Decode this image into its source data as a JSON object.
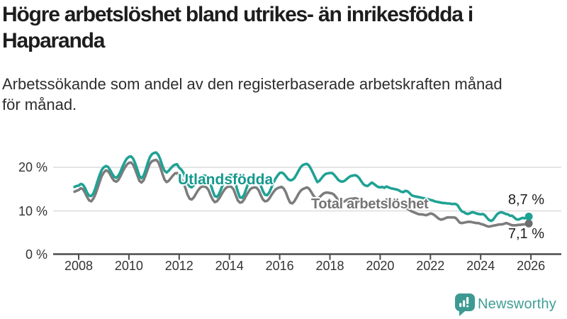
{
  "header": {
    "title_lines": [
      "Högre arbetslöshet bland utrikes- än inrikesfödda i",
      "Haparanda"
    ],
    "subtitle_lines": [
      "Arbetssökande som andel av den registerbaserade arbetskraften månad",
      "för månad."
    ]
  },
  "footer": {
    "brand": "Newsworthy"
  },
  "colors": {
    "teal_line": "#1fa294",
    "teal_label": "#14998c",
    "gray_line": "#7c7c7c",
    "gray_dot": "#6e6e6e",
    "gray_label": "#747474",
    "logo_teal": "#3d9a93",
    "grid": "#dcdcdc",
    "axis": "#4b4b4b",
    "tick_text": "#333333"
  },
  "chart_data": {
    "type": "line",
    "title": "Högre arbetslöshet bland utrikes- än inrikesfödda i Haparanda",
    "subtitle": "Arbetssökande som andel av den registerbaserade arbetskraften månad för månad.",
    "unit": "%",
    "frequency": "monthly",
    "x_start": "2007-11",
    "x_end": "2025-12",
    "x_ticks": [
      2008,
      2010,
      2012,
      2014,
      2016,
      2018,
      2020,
      2022,
      2024,
      2026
    ],
    "y_ticks": [
      {
        "value": 0,
        "label": "0 %"
      },
      {
        "value": 10,
        "label": "10 %"
      },
      {
        "value": 20,
        "label": "20 %"
      }
    ],
    "ylim": [
      0,
      25
    ],
    "grid": "horizontal",
    "legend_position": "inline-labels",
    "series": [
      {
        "name": "Utlandsfödda",
        "color": "#1fa294",
        "dot_color": "#1fa294",
        "end_label": "8,7 %",
        "end_value": 8.7,
        "values": [
          15.5,
          15.7,
          15.8,
          16.2,
          16.0,
          15.3,
          14.2,
          13.5,
          13.4,
          14.0,
          15.2,
          16.8,
          18.2,
          19.4,
          20.0,
          20.3,
          20.1,
          19.4,
          18.5,
          17.8,
          17.6,
          18.1,
          19.0,
          20.2,
          21.2,
          22.0,
          22.4,
          22.5,
          22.0,
          20.9,
          19.5,
          18.0,
          17.5,
          18.1,
          19.4,
          21.0,
          22.3,
          23.0,
          23.3,
          23.4,
          22.9,
          21.8,
          20.3,
          19.2,
          18.8,
          19.2,
          19.8,
          20.3,
          20.6,
          20.7,
          19.9,
          19.5,
          18.8,
          17.6,
          16.3,
          15.6,
          15.4,
          15.9,
          16.6,
          17.3,
          17.8,
          18.0,
          18.1,
          18.0,
          17.4,
          16.2,
          14.6,
          13.4,
          13.2,
          13.8,
          15.0,
          16.2,
          17.2,
          17.8,
          18.2,
          18.3,
          17.6,
          16.1,
          14.4,
          13.1,
          13.0,
          13.7,
          15.0,
          16.3,
          17.1,
          17.5,
          17.7,
          17.6,
          17.0,
          15.8,
          14.5,
          13.7,
          13.6,
          14.2,
          15.3,
          16.4,
          17.4,
          18.1,
          18.7,
          18.8,
          18.5,
          17.9,
          17.3,
          17.0,
          17.1,
          17.5,
          18.3,
          19.2,
          20.0,
          20.5,
          20.7,
          20.8,
          20.4,
          19.6,
          18.6,
          17.6,
          16.6,
          16.9,
          17.5,
          18.1,
          18.5,
          18.6,
          18.7,
          18.7,
          18.3,
          17.7,
          17.1,
          16.8,
          16.7,
          16.9,
          17.3,
          17.7,
          18.0,
          18.1,
          18.2,
          18.0,
          17.5,
          16.8,
          16.1,
          15.8,
          15.7,
          16.1,
          16.5,
          16.2,
          15.8,
          15.5,
          15.4,
          15.5,
          15.3,
          15.6,
          15.4,
          15.2,
          15.1,
          15.0,
          14.9,
          14.7,
          14.4,
          14.3,
          14.6,
          14.5,
          14.1,
          13.6,
          13.4,
          13.3,
          13.2,
          13.1,
          13.0,
          12.9,
          12.8,
          12.7,
          12.5,
          12.4,
          12.2,
          12.1,
          12.0,
          11.9,
          11.8,
          11.8,
          11.7,
          11.7,
          11.6,
          11.6,
          11.6,
          11.3,
          10.5,
          9.9,
          9.7,
          9.4,
          9.3,
          9.5,
          9.7,
          9.6,
          9.4,
          9.3,
          9.2,
          9.3,
          9.0,
          8.4,
          7.9,
          7.7,
          8.0,
          8.7,
          9.3,
          9.6,
          9.7,
          9.5,
          9.3,
          9.2,
          8.9,
          8.9,
          8.5,
          8.1,
          8.0,
          8.2,
          8.4,
          8.3,
          8.4,
          8.7
        ]
      },
      {
        "name": "Total arbetslöshet",
        "color": "#7c7c7c",
        "dot_color": "#6e6e6e",
        "end_label": "7,1 %",
        "end_value": 7.1,
        "values": [
          14.4,
          14.6,
          14.8,
          15.2,
          15.0,
          14.2,
          13.2,
          12.4,
          12.2,
          12.8,
          13.8,
          15.2,
          16.6,
          18.0,
          18.8,
          19.3,
          19.1,
          18.4,
          17.5,
          16.9,
          16.7,
          17.1,
          18.0,
          19.0,
          19.9,
          20.6,
          21.0,
          21.1,
          20.6,
          19.5,
          18.2,
          16.9,
          16.5,
          17.0,
          18.2,
          19.6,
          20.8,
          21.4,
          21.6,
          21.7,
          21.2,
          20.0,
          18.5,
          17.2,
          16.6,
          16.9,
          17.5,
          18.1,
          18.6,
          18.7,
          17.9,
          17.4,
          16.5,
          15.2,
          13.7,
          12.8,
          12.6,
          13.1,
          13.9,
          14.7,
          15.3,
          15.6,
          15.6,
          15.4,
          14.8,
          13.6,
          12.6,
          12.0,
          12.2,
          12.8,
          13.6,
          14.4,
          15.1,
          15.5,
          15.6,
          15.5,
          14.9,
          13.6,
          12.4,
          11.9,
          12.0,
          12.6,
          13.5,
          14.3,
          15.0,
          15.3,
          15.4,
          15.3,
          14.7,
          13.6,
          12.6,
          12.2,
          12.3,
          12.8,
          13.6,
          14.3,
          14.9,
          15.2,
          15.4,
          15.5,
          15.1,
          14.2,
          12.9,
          11.9,
          11.7,
          12.2,
          13.0,
          13.9,
          14.6,
          15.0,
          15.2,
          15.4,
          15.1,
          14.4,
          13.6,
          13.0,
          12.8,
          13.1,
          13.6,
          14.0,
          14.2,
          14.2,
          14.1,
          14.0,
          13.7,
          13.1,
          12.5,
          12.1,
          12.0,
          12.2,
          12.5,
          12.7,
          12.8,
          12.8,
          12.9,
          12.8,
          12.5,
          12.0,
          11.6,
          11.3,
          11.2,
          11.4,
          11.6,
          11.7,
          11.8,
          11.9,
          12.0,
          12.1,
          12.3,
          12.6,
          12.7,
          12.5,
          12.2,
          11.9,
          11.6,
          11.3,
          11.0,
          10.8,
          10.7,
          10.5,
          10.2,
          9.9,
          9.7,
          9.5,
          9.3,
          9.2,
          9.2,
          9.1,
          9.0,
          9.2,
          9.4,
          9.3,
          9.0,
          8.6,
          8.2,
          8.0,
          8.1,
          8.3,
          8.5,
          8.5,
          8.5,
          8.5,
          8.4,
          7.9,
          7.3,
          7.2,
          7.3,
          7.4,
          7.5,
          7.5,
          7.4,
          7.3,
          7.2,
          7.2,
          7.0,
          6.9,
          6.7,
          6.5,
          6.4,
          6.5,
          6.6,
          6.7,
          6.8,
          6.9,
          6.9,
          7.0,
          7.2,
          7.1,
          6.9,
          6.7,
          6.7,
          6.7,
          6.8,
          6.8,
          6.9,
          6.9,
          7.0,
          7.1
        ]
      }
    ]
  }
}
